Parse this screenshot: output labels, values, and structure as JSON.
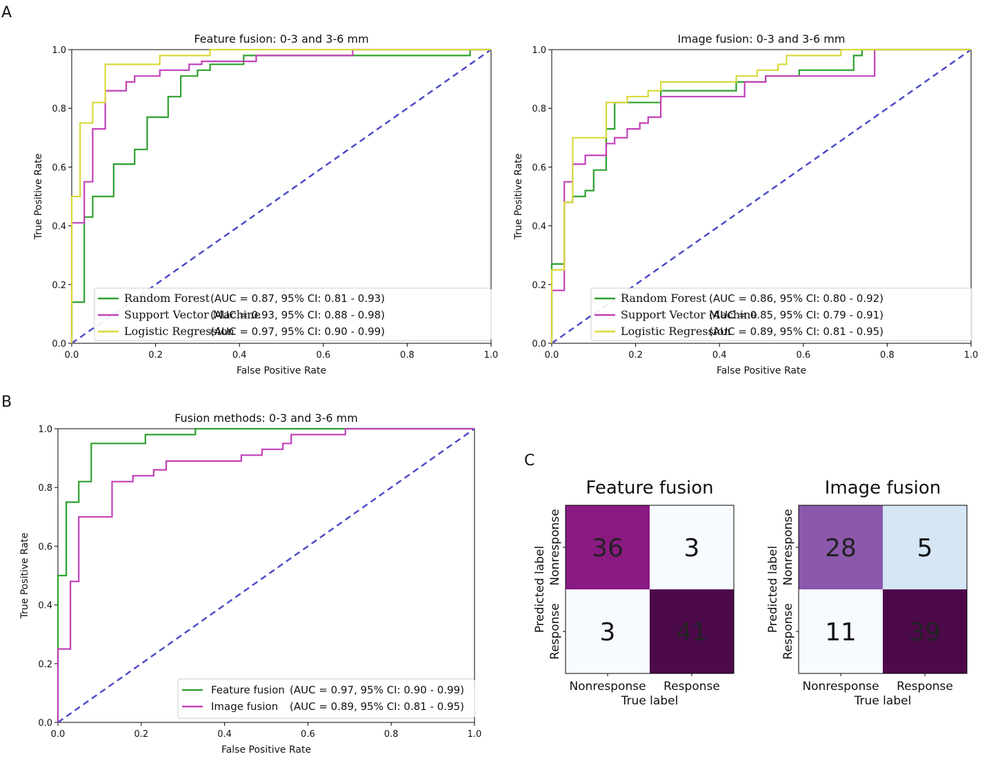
{
  "panels": {
    "a": "A",
    "b": "B",
    "c": "C"
  },
  "colors": {
    "rf": "#2ca02c",
    "svm": "#c23fb8",
    "lr": "#d8d83a",
    "diag": "#4b4bc8",
    "feature": "#2ca02c",
    "image": "#c23fb8"
  },
  "chart_data": [
    {
      "type": "line",
      "id": "feature_fusion_roc",
      "title": "Feature fusion: 0-3 and 3-6 mm",
      "xlabel": "False Positive Rate",
      "ylabel": "True Positive Rate",
      "xlim": [
        0,
        1
      ],
      "ylim": [
        0,
        1
      ],
      "xticks": [
        "0.0",
        "0.2",
        "0.4",
        "0.6",
        "0.8",
        "1.0"
      ],
      "yticks": [
        "0.0",
        "0.2",
        "0.4",
        "0.6",
        "0.8",
        "1.0"
      ],
      "legend_position": "bottom-right",
      "series": [
        {
          "name": "Random Forest",
          "legend_metric": "(AUC = 0.87, 95% CI: 0.81 - 0.93)",
          "color_key": "rf",
          "x": [
            0,
            0,
            0.03,
            0.03,
            0.05,
            0.05,
            0.1,
            0.1,
            0.15,
            0.15,
            0.18,
            0.18,
            0.23,
            0.23,
            0.26,
            0.26,
            0.3,
            0.3,
            0.33,
            0.33,
            0.41,
            0.41,
            0.95,
            0.95,
            1
          ],
          "y": [
            0,
            0.14,
            0.14,
            0.43,
            0.43,
            0.5,
            0.5,
            0.61,
            0.61,
            0.66,
            0.66,
            0.77,
            0.77,
            0.84,
            0.84,
            0.91,
            0.91,
            0.93,
            0.93,
            0.95,
            0.95,
            0.98,
            0.98,
            1,
            1
          ]
        },
        {
          "name": "Support Vector Machine",
          "legend_metric": "(AUC = 0.93, 95% CI: 0.88 - 0.98)",
          "color_key": "svm",
          "x": [
            0,
            0,
            0.03,
            0.03,
            0.05,
            0.05,
            0.08,
            0.08,
            0.13,
            0.13,
            0.15,
            0.15,
            0.21,
            0.21,
            0.28,
            0.28,
            0.31,
            0.31,
            0.44,
            0.44,
            0.67,
            0.67,
            1
          ],
          "y": [
            0,
            0.41,
            0.41,
            0.55,
            0.55,
            0.73,
            0.73,
            0.86,
            0.86,
            0.89,
            0.89,
            0.91,
            0.91,
            0.93,
            0.93,
            0.95,
            0.95,
            0.96,
            0.96,
            0.98,
            0.98,
            1,
            1
          ]
        },
        {
          "name": "Logistic Regression",
          "legend_metric": "(AUC = 0.97, 95% CI: 0.90 - 0.99)",
          "color_key": "lr",
          "x": [
            0,
            0,
            0.02,
            0.02,
            0.05,
            0.05,
            0.08,
            0.08,
            0.21,
            0.21,
            0.33,
            0.33,
            1
          ],
          "y": [
            0,
            0.5,
            0.5,
            0.75,
            0.75,
            0.82,
            0.82,
            0.95,
            0.95,
            0.98,
            0.98,
            1,
            1
          ]
        }
      ]
    },
    {
      "type": "line",
      "id": "image_fusion_roc",
      "title": "Image fusion: 0-3 and 3-6 mm",
      "xlabel": "False Positive Rate",
      "ylabel": "True Positive Rate",
      "xlim": [
        0,
        1
      ],
      "ylim": [
        0,
        1
      ],
      "xticks": [
        "0.0",
        "0.2",
        "0.4",
        "0.6",
        "0.8",
        "1.0"
      ],
      "yticks": [
        "0.0",
        "0.2",
        "0.4",
        "0.6",
        "0.8",
        "1.0"
      ],
      "legend_position": "bottom-right",
      "series": [
        {
          "name": "Random Forest",
          "legend_metric": "(AUC = 0.86, 95% CI: 0.80 - 0.92)",
          "color_key": "rf",
          "x": [
            0,
            0,
            0.03,
            0.03,
            0.05,
            0.05,
            0.08,
            0.08,
            0.1,
            0.1,
            0.13,
            0.13,
            0.15,
            0.15,
            0.18,
            0.18,
            0.26,
            0.26,
            0.44,
            0.44,
            0.51,
            0.51,
            0.59,
            0.59,
            0.72,
            0.72,
            0.74,
            0.74,
            1
          ],
          "y": [
            0,
            0.27,
            0.27,
            0.48,
            0.48,
            0.5,
            0.5,
            0.52,
            0.52,
            0.59,
            0.59,
            0.73,
            0.73,
            0.82,
            0.82,
            0.82,
            0.82,
            0.86,
            0.86,
            0.89,
            0.89,
            0.91,
            0.91,
            0.93,
            0.93,
            0.98,
            0.98,
            1,
            1
          ]
        },
        {
          "name": "Support Vector Machine",
          "legend_metric": "(AUC = 0.85, 95% CI: 0.79 - 0.91)",
          "color_key": "svm",
          "x": [
            0,
            0,
            0.03,
            0.03,
            0.05,
            0.05,
            0.08,
            0.08,
            0.13,
            0.13,
            0.15,
            0.15,
            0.18,
            0.18,
            0.21,
            0.21,
            0.23,
            0.23,
            0.26,
            0.26,
            0.46,
            0.46,
            0.51,
            0.51,
            0.77,
            0.77,
            1
          ],
          "y": [
            0,
            0.18,
            0.18,
            0.55,
            0.55,
            0.61,
            0.61,
            0.64,
            0.64,
            0.68,
            0.68,
            0.7,
            0.7,
            0.73,
            0.73,
            0.75,
            0.75,
            0.77,
            0.77,
            0.84,
            0.84,
            0.89,
            0.89,
            0.91,
            0.91,
            1,
            1
          ]
        },
        {
          "name": "Logistic Regression",
          "legend_metric": "(AUC = 0.89, 95% CI: 0.81 - 0.95)",
          "color_key": "lr",
          "x": [
            0,
            0,
            0.03,
            0.03,
            0.05,
            0.05,
            0.13,
            0.13,
            0.18,
            0.18,
            0.23,
            0.23,
            0.26,
            0.26,
            0.44,
            0.44,
            0.49,
            0.49,
            0.54,
            0.54,
            0.56,
            0.56,
            0.69,
            0.69,
            1
          ],
          "y": [
            0,
            0.25,
            0.25,
            0.48,
            0.48,
            0.7,
            0.7,
            0.82,
            0.82,
            0.84,
            0.84,
            0.86,
            0.86,
            0.89,
            0.89,
            0.91,
            0.91,
            0.93,
            0.93,
            0.95,
            0.95,
            0.98,
            0.98,
            1,
            1
          ]
        }
      ]
    },
    {
      "type": "line",
      "id": "fusion_methods_roc",
      "title": "Fusion methods: 0-3 and 3-6 mm",
      "xlabel": "False Positive Rate",
      "ylabel": "True Positive Rate",
      "xlim": [
        0,
        1
      ],
      "ylim": [
        0,
        1
      ],
      "xticks": [
        "0.0",
        "0.2",
        "0.4",
        "0.6",
        "0.8",
        "1.0"
      ],
      "yticks": [
        "0.0",
        "0.2",
        "0.4",
        "0.6",
        "0.8",
        "1.0"
      ],
      "legend_position": "bottom-right",
      "series": [
        {
          "name": "Feature fusion",
          "legend_metric": "(AUC = 0.97, 95% CI: 0.90 - 0.99)",
          "color_key": "feature",
          "x": [
            0,
            0,
            0.02,
            0.02,
            0.05,
            0.05,
            0.08,
            0.08,
            0.21,
            0.21,
            0.33,
            0.33,
            1
          ],
          "y": [
            0,
            0.5,
            0.5,
            0.75,
            0.75,
            0.82,
            0.82,
            0.95,
            0.95,
            0.98,
            0.98,
            1,
            1
          ]
        },
        {
          "name": "Image fusion",
          "legend_metric": "(AUC = 0.89, 95% CI: 0.81 - 0.95)",
          "color_key": "image",
          "x": [
            0,
            0,
            0.03,
            0.03,
            0.05,
            0.05,
            0.13,
            0.13,
            0.18,
            0.18,
            0.23,
            0.23,
            0.26,
            0.26,
            0.44,
            0.44,
            0.49,
            0.49,
            0.54,
            0.54,
            0.56,
            0.56,
            0.69,
            0.69,
            1
          ],
          "y": [
            0,
            0.25,
            0.25,
            0.48,
            0.48,
            0.7,
            0.7,
            0.82,
            0.82,
            0.84,
            0.84,
            0.86,
            0.86,
            0.89,
            0.89,
            0.91,
            0.91,
            0.93,
            0.93,
            0.95,
            0.95,
            0.98,
            0.98,
            1,
            1
          ]
        }
      ]
    },
    {
      "type": "heatmap",
      "id": "feature_fusion_cm",
      "title": "Feature fusion",
      "xlabel": "True label",
      "ylabel": "Predicted label",
      "xticks": [
        "Nonresponse",
        "Response"
      ],
      "yticks": [
        "Nonresponse",
        "Response"
      ],
      "cells": [
        [
          36,
          3
        ],
        [
          3,
          41
        ]
      ],
      "cell_colors": [
        [
          "#8a1a82",
          "#f7fbff"
        ],
        [
          "#f7fbff",
          "#4d0a4b"
        ]
      ]
    },
    {
      "type": "heatmap",
      "id": "image_fusion_cm",
      "title": "Image fusion",
      "xlabel": "True label",
      "ylabel": "Predicted label",
      "xticks": [
        "Nonresponse",
        "Response"
      ],
      "yticks": [
        "Nonresponse",
        "Response"
      ],
      "cells": [
        [
          28,
          5
        ],
        [
          11,
          39
        ]
      ],
      "cell_colors": [
        [
          "#8c58ac",
          "#d6e6f4"
        ],
        [
          "#f7fbff",
          "#4d0a4b"
        ]
      ]
    }
  ]
}
